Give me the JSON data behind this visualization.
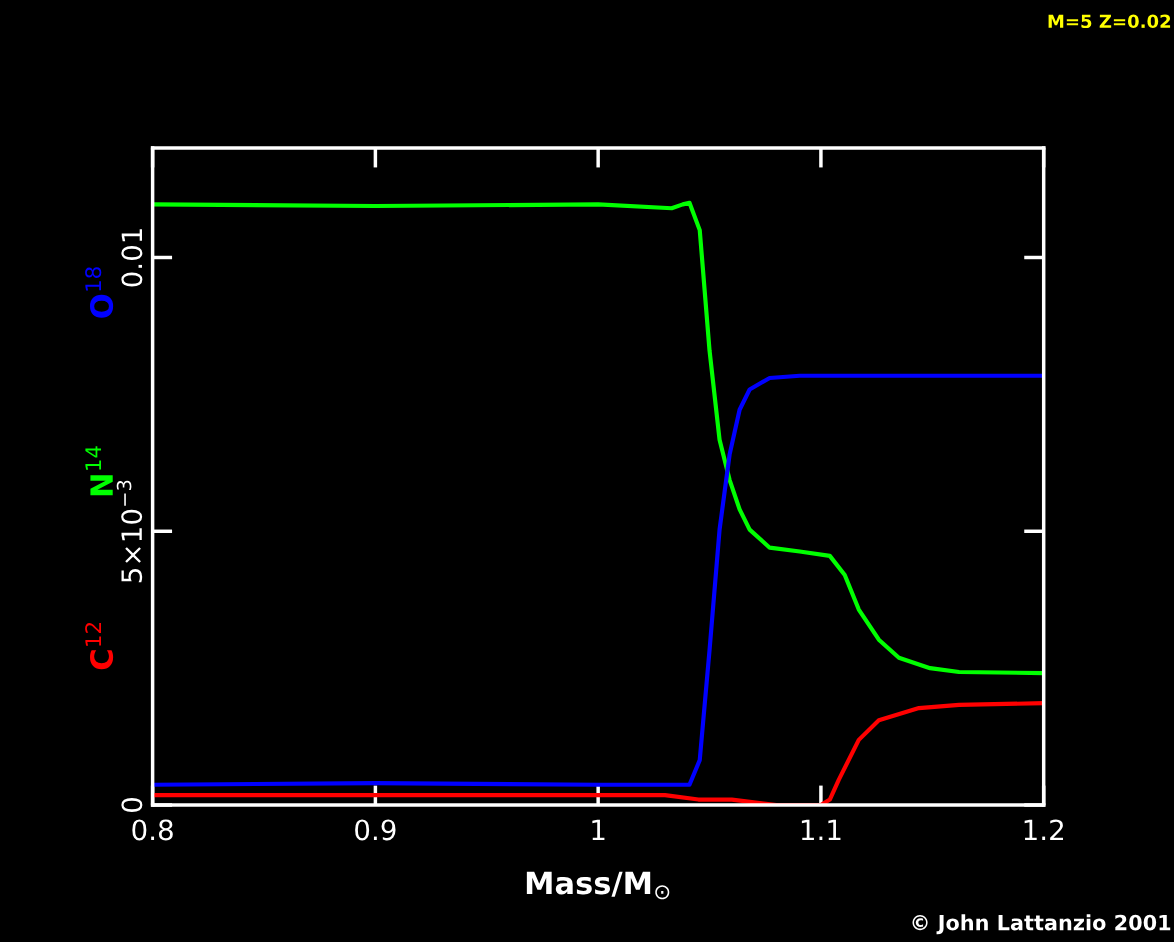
{
  "chart_data": {
    "type": "line",
    "xlabel": "Mass/M$_{⊙}$",
    "xlim": [
      0.8,
      1.2
    ],
    "xticks": [
      0.8,
      0.9,
      {
        "value": 1.0,
        "label": "1"
      },
      1.1,
      1.2
    ],
    "ylim": [
      0,
      0.012
    ],
    "yticks": [
      {
        "value": 0,
        "label": "0"
      },
      {
        "value": 0.005,
        "label": "5×10$^{−3}$"
      },
      0.01
    ],
    "grid": false,
    "legend": false,
    "marker": "none",
    "line_style": "solid",
    "annotations": [
      "M=5 Z=0.02",
      "© John Lattanzio 2001"
    ],
    "series": [
      {
        "name": "C$^{12}$",
        "color": "#ff0000",
        "x": [
          0.8,
          0.9,
          1.0,
          1.03,
          1.045,
          1.06,
          1.08,
          1.1,
          1.104,
          1.108,
          1.117,
          1.126,
          1.144,
          1.162,
          1.2
        ],
        "values": [
          0.00018,
          0.00018,
          0.00018,
          0.00018,
          0.0001,
          0.0001,
          0.0,
          0.0,
          0.0001,
          0.00046,
          0.00119,
          0.00155,
          0.00177,
          0.00183,
          0.00186
        ]
      },
      {
        "name": "N$^{14}$",
        "color": "#00ff00",
        "x": [
          0.8,
          0.9,
          1.0,
          1.033,
          1.038,
          1.041,
          1.0456,
          1.05,
          1.0545,
          1.059,
          1.0635,
          1.068,
          1.077,
          1.0905,
          1.104,
          1.1107,
          1.117,
          1.126,
          1.135,
          1.149,
          1.162,
          1.2
        ],
        "values": [
          0.01097,
          0.01094,
          0.01097,
          0.0109,
          0.01097,
          0.011,
          0.0105,
          0.0083,
          0.00667,
          0.00594,
          0.0054,
          0.00503,
          0.0047,
          0.00463,
          0.00455,
          0.0042,
          0.00357,
          0.00302,
          0.00269,
          0.0025,
          0.00243,
          0.00241
        ]
      },
      {
        "name": "O$^{18}$",
        "color": "#0000ff",
        "x": [
          0.8,
          0.9,
          1.0,
          1.041,
          1.0456,
          1.05,
          1.0545,
          1.059,
          1.0635,
          1.068,
          1.077,
          1.0905,
          1.2
        ],
        "values": [
          0.00037,
          0.0004,
          0.00037,
          0.00037,
          0.00082,
          0.00283,
          0.00503,
          0.0064,
          0.00722,
          0.00759,
          0.0078,
          0.00784,
          0.00784
        ]
      }
    ]
  }
}
